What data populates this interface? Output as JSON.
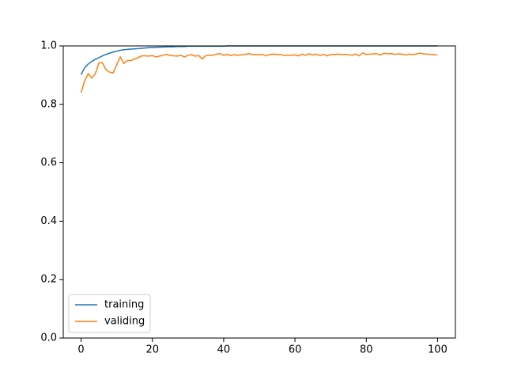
{
  "chart_data": {
    "type": "line",
    "x": [
      0,
      1,
      2,
      3,
      4,
      5,
      6,
      7,
      8,
      9,
      10,
      11,
      12,
      13,
      14,
      15,
      16,
      17,
      18,
      19,
      20,
      21,
      22,
      23,
      24,
      25,
      26,
      27,
      28,
      29,
      30,
      31,
      32,
      33,
      34,
      35,
      36,
      37,
      38,
      39,
      40,
      41,
      42,
      43,
      44,
      45,
      46,
      47,
      48,
      49,
      50,
      51,
      52,
      53,
      54,
      55,
      56,
      57,
      58,
      59,
      60,
      61,
      62,
      63,
      64,
      65,
      66,
      67,
      68,
      69,
      70,
      71,
      72,
      73,
      74,
      75,
      76,
      77,
      78,
      79,
      80,
      81,
      82,
      83,
      84,
      85,
      86,
      87,
      88,
      89,
      90,
      91,
      92,
      93,
      94,
      95,
      96,
      97,
      98,
      99,
      100
    ],
    "series": [
      {
        "name": "training",
        "color": "#1f77b4",
        "values": [
          0.902,
          0.925,
          0.938,
          0.947,
          0.954,
          0.96,
          0.966,
          0.971,
          0.975,
          0.979,
          0.982,
          0.985,
          0.987,
          0.988,
          0.989,
          0.99,
          0.991,
          0.992,
          0.993,
          0.994,
          0.995,
          0.995,
          0.996,
          0.996,
          0.997,
          0.997,
          0.997,
          0.998,
          0.998,
          0.998,
          0.999,
          0.999,
          0.999,
          0.999,
          0.999,
          0.999,
          0.999,
          0.999,
          0.999,
          0.999,
          0.999,
          1,
          1,
          1,
          1,
          1,
          1,
          1,
          1,
          1,
          1,
          1,
          1,
          1,
          1,
          1,
          1,
          1,
          1,
          1,
          1,
          1,
          1,
          1,
          1,
          1,
          1,
          1,
          1,
          1,
          1,
          1,
          1,
          1,
          1,
          1,
          1,
          1,
          1,
          1,
          1,
          1,
          1,
          1,
          1,
          1,
          1,
          1,
          1,
          1,
          1,
          1,
          1,
          1,
          1,
          1,
          1,
          1,
          1,
          1,
          1
        ]
      },
      {
        "name": "validing",
        "color": "#ff7f0e",
        "values": [
          0.84,
          0.88,
          0.905,
          0.89,
          0.905,
          0.942,
          0.942,
          0.918,
          0.91,
          0.908,
          0.935,
          0.962,
          0.94,
          0.95,
          0.95,
          0.955,
          0.96,
          0.966,
          0.966,
          0.965,
          0.967,
          0.962,
          0.965,
          0.968,
          0.971,
          0.967,
          0.966,
          0.965,
          0.968,
          0.962,
          0.968,
          0.97,
          0.965,
          0.967,
          0.955,
          0.967,
          0.968,
          0.968,
          0.972,
          0.974,
          0.968,
          0.971,
          0.967,
          0.97,
          0.968,
          0.97,
          0.971,
          0.974,
          0.971,
          0.97,
          0.97,
          0.971,
          0.966,
          0.971,
          0.972,
          0.971,
          0.971,
          0.967,
          0.968,
          0.968,
          0.969,
          0.966,
          0.972,
          0.968,
          0.973,
          0.969,
          0.972,
          0.967,
          0.971,
          0.966,
          0.97,
          0.971,
          0.972,
          0.971,
          0.971,
          0.97,
          0.968,
          0.972,
          0.966,
          0.976,
          0.971,
          0.972,
          0.973,
          0.973,
          0.969,
          0.975,
          0.973,
          0.974,
          0.971,
          0.973,
          0.972,
          0.969,
          0.972,
          0.971,
          0.972,
          0.975,
          0.973,
          0.972,
          0.971,
          0.97,
          0.969
        ]
      }
    ],
    "xlim": [
      -5,
      105
    ],
    "xticks": [
      0,
      20,
      40,
      60,
      80,
      100
    ],
    "ylim": [
      0,
      1
    ],
    "yticks": [
      {
        "value": 0,
        "label": "0.0"
      },
      0.2,
      0.4,
      0.6,
      0.8,
      {
        "value": 1,
        "label": "1.0"
      }
    ],
    "legend": "lower left",
    "grid": false
  }
}
